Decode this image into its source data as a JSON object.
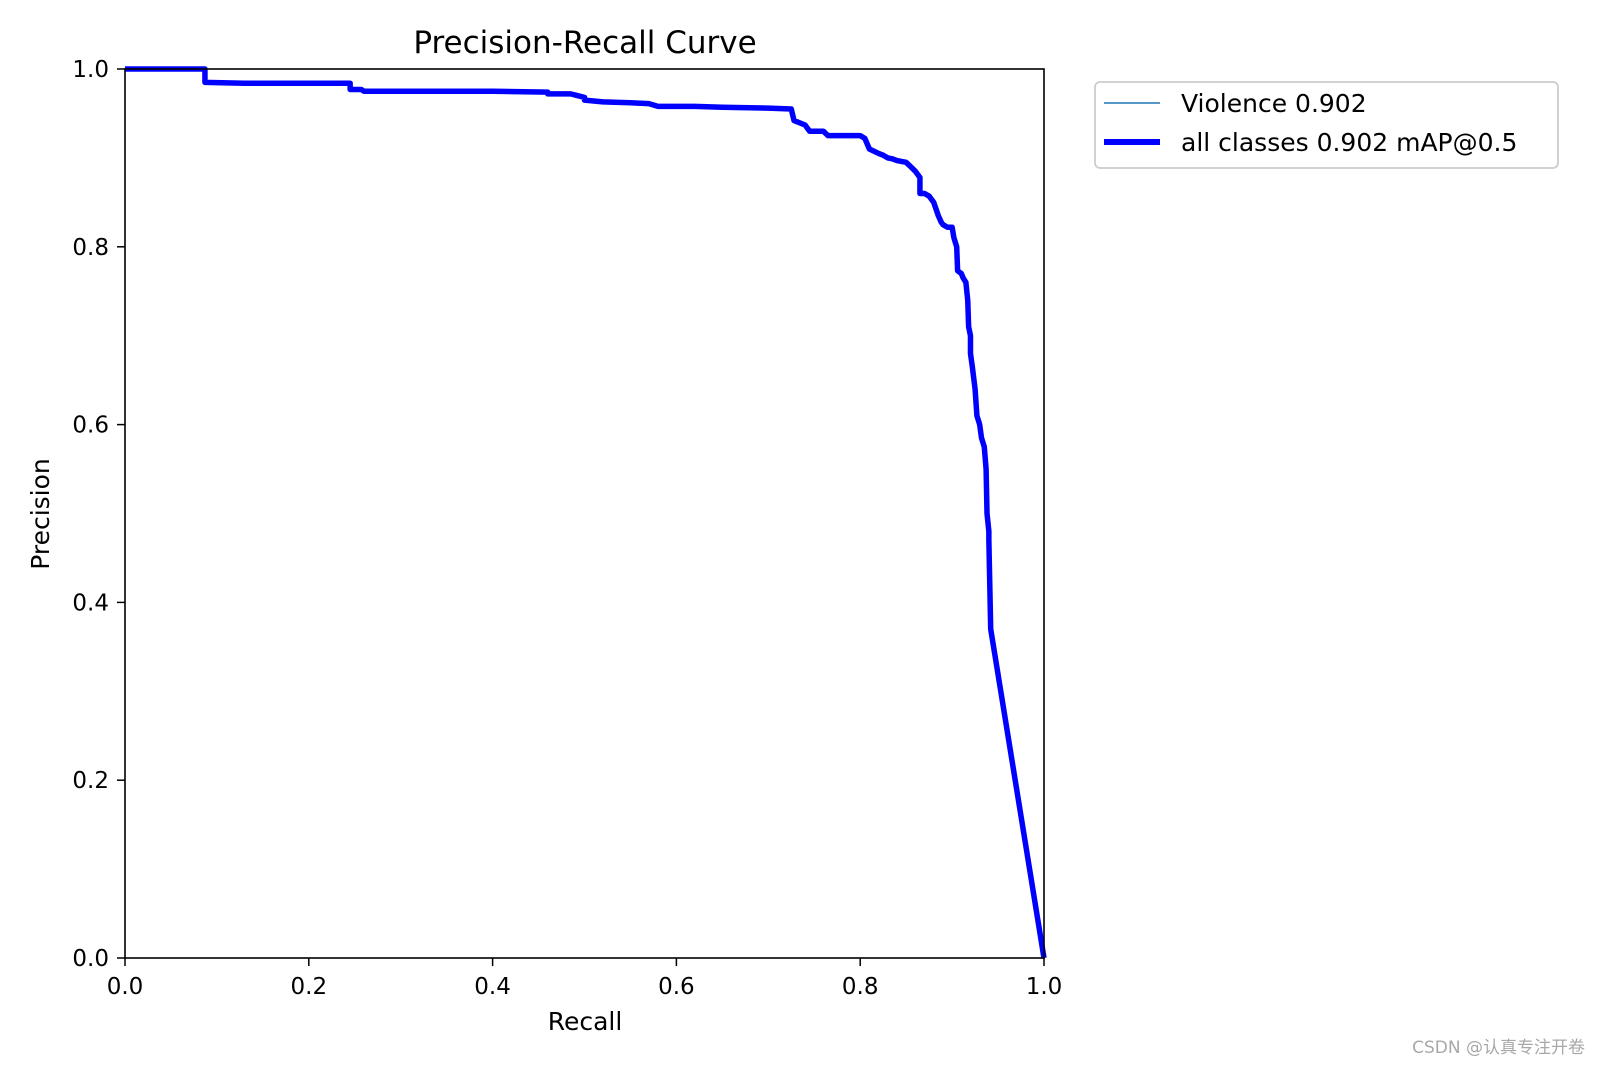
{
  "chart_data": {
    "type": "line",
    "title": "Precision-Recall Curve",
    "xlabel": "Recall",
    "ylabel": "Precision",
    "xlim": [
      0.0,
      1.0
    ],
    "ylim": [
      0.0,
      1.0
    ],
    "x_ticks": [
      "0.0",
      "0.2",
      "0.4",
      "0.6",
      "0.8",
      "1.0"
    ],
    "y_ticks": [
      "0.0",
      "0.2",
      "0.4",
      "0.6",
      "0.8",
      "1.0"
    ],
    "grid": false,
    "legend_position": "upper-left outside plot",
    "series": [
      {
        "name": "Violence 0.902",
        "color": "#1f77b4",
        "line": "thin",
        "x": [
          0.0,
          0.087,
          0.087,
          0.13,
          0.245,
          0.245,
          0.257,
          0.26,
          0.4,
          0.46,
          0.46,
          0.485,
          0.5,
          0.5,
          0.52,
          0.55,
          0.57,
          0.58,
          0.6,
          0.62,
          0.65,
          0.7,
          0.725,
          0.728,
          0.74,
          0.745,
          0.76,
          0.765,
          0.78,
          0.8,
          0.805,
          0.81,
          0.82,
          0.825,
          0.83,
          0.835,
          0.84,
          0.85,
          0.855,
          0.86,
          0.865,
          0.865,
          0.87,
          0.875,
          0.88,
          0.885,
          0.888,
          0.89,
          0.895,
          0.9,
          0.902,
          0.905,
          0.906,
          0.91,
          0.912,
          0.915,
          0.917,
          0.918,
          0.92,
          0.92,
          0.922,
          0.925,
          0.927,
          0.93,
          0.932,
          0.935,
          0.937,
          0.938,
          0.94,
          0.94,
          0.942,
          1.0
        ],
        "y": [
          1.0,
          1.0,
          0.985,
          0.984,
          0.984,
          0.977,
          0.977,
          0.975,
          0.975,
          0.974,
          0.972,
          0.972,
          0.968,
          0.965,
          0.963,
          0.962,
          0.961,
          0.958,
          0.958,
          0.958,
          0.957,
          0.956,
          0.955,
          0.942,
          0.937,
          0.93,
          0.93,
          0.925,
          0.925,
          0.925,
          0.922,
          0.91,
          0.905,
          0.903,
          0.9,
          0.899,
          0.897,
          0.895,
          0.89,
          0.885,
          0.878,
          0.86,
          0.86,
          0.857,
          0.85,
          0.835,
          0.828,
          0.825,
          0.822,
          0.822,
          0.81,
          0.8,
          0.773,
          0.77,
          0.765,
          0.76,
          0.74,
          0.71,
          0.7,
          0.68,
          0.665,
          0.64,
          0.61,
          0.6,
          0.585,
          0.575,
          0.55,
          0.5,
          0.48,
          0.47,
          0.37,
          0.0
        ]
      },
      {
        "name": "all classes 0.902 mAP@0.5",
        "color": "#0000ff",
        "line": "thick",
        "x": [
          0.0,
          0.087,
          0.087,
          0.13,
          0.245,
          0.245,
          0.257,
          0.26,
          0.4,
          0.46,
          0.46,
          0.485,
          0.5,
          0.5,
          0.52,
          0.55,
          0.57,
          0.58,
          0.6,
          0.62,
          0.65,
          0.7,
          0.725,
          0.728,
          0.74,
          0.745,
          0.76,
          0.765,
          0.78,
          0.8,
          0.805,
          0.81,
          0.82,
          0.825,
          0.83,
          0.835,
          0.84,
          0.85,
          0.855,
          0.86,
          0.865,
          0.865,
          0.87,
          0.875,
          0.88,
          0.885,
          0.888,
          0.89,
          0.895,
          0.9,
          0.902,
          0.905,
          0.906,
          0.91,
          0.912,
          0.915,
          0.917,
          0.918,
          0.92,
          0.92,
          0.922,
          0.925,
          0.927,
          0.93,
          0.932,
          0.935,
          0.937,
          0.938,
          0.94,
          0.94,
          0.942,
          1.0
        ],
        "y": [
          1.0,
          1.0,
          0.985,
          0.984,
          0.984,
          0.977,
          0.977,
          0.975,
          0.975,
          0.974,
          0.972,
          0.972,
          0.968,
          0.965,
          0.963,
          0.962,
          0.961,
          0.958,
          0.958,
          0.958,
          0.957,
          0.956,
          0.955,
          0.942,
          0.937,
          0.93,
          0.93,
          0.925,
          0.925,
          0.925,
          0.922,
          0.91,
          0.905,
          0.903,
          0.9,
          0.899,
          0.897,
          0.895,
          0.89,
          0.885,
          0.878,
          0.86,
          0.86,
          0.857,
          0.85,
          0.835,
          0.828,
          0.825,
          0.822,
          0.822,
          0.81,
          0.8,
          0.773,
          0.77,
          0.765,
          0.76,
          0.74,
          0.71,
          0.7,
          0.68,
          0.665,
          0.64,
          0.61,
          0.6,
          0.585,
          0.575,
          0.55,
          0.5,
          0.48,
          0.47,
          0.37,
          0.0
        ]
      }
    ]
  },
  "watermark": "CSDN @认真专注开卷",
  "colors": {
    "background": "#ffffff",
    "axes": "#000000",
    "legend_border": "#cccccc",
    "watermark": "#a8a8a8"
  }
}
